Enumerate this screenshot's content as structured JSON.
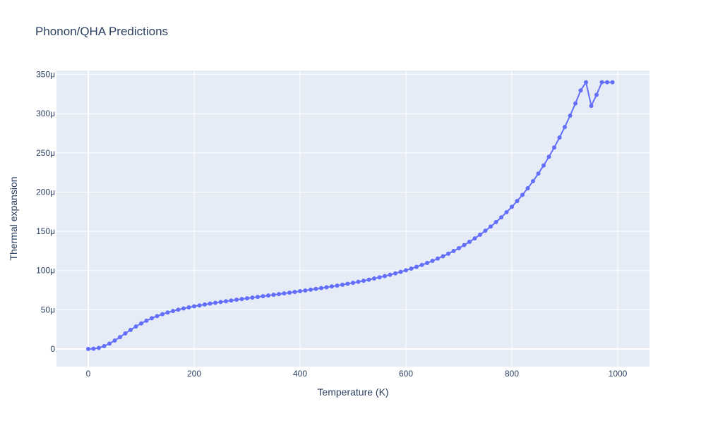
{
  "chart_data": {
    "type": "line",
    "title": "Phonon/QHA Predictions",
    "xlabel": "Temperature (K)",
    "ylabel": "Thermal expansion",
    "xlim": [
      -60,
      1060
    ],
    "ylim": [
      -2.25e-05,
      0.000355
    ],
    "grid": true,
    "x_ticks": [
      {
        "value": 0,
        "label": "0"
      },
      {
        "value": 200,
        "label": "200"
      },
      {
        "value": 400,
        "label": "400"
      },
      {
        "value": 600,
        "label": "600"
      },
      {
        "value": 800,
        "label": "800"
      },
      {
        "value": 1000,
        "label": "1000"
      }
    ],
    "y_ticks": [
      {
        "value": 0,
        "label": "0"
      },
      {
        "value": 5e-05,
        "label": "50μ"
      },
      {
        "value": 0.0001,
        "label": "100μ"
      },
      {
        "value": 0.00015,
        "label": "150μ"
      },
      {
        "value": 0.0002,
        "label": "200μ"
      },
      {
        "value": 0.00025,
        "label": "250μ"
      },
      {
        "value": 0.0003,
        "label": "300μ"
      },
      {
        "value": 0.00035,
        "label": "350μ"
      }
    ],
    "colors": {
      "plot_bg": "#e5ecf6",
      "grid": "#ffffff",
      "series": "#636efa",
      "text": "#2a3f5f"
    },
    "series": [
      {
        "x": [
          0,
          10,
          20,
          30,
          40,
          50,
          60,
          70,
          80,
          90,
          100,
          110,
          120,
          130,
          140,
          150,
          160,
          170,
          180,
          190,
          200,
          210,
          220,
          230,
          240,
          250,
          260,
          270,
          280,
          290,
          300,
          310,
          320,
          330,
          340,
          350,
          360,
          370,
          380,
          390,
          400,
          410,
          420,
          430,
          440,
          450,
          460,
          470,
          480,
          490,
          500,
          510,
          520,
          530,
          540,
          550,
          560,
          570,
          580,
          590,
          600,
          610,
          620,
          630,
          640,
          650,
          660,
          670,
          680,
          690,
          700,
          710,
          720,
          730,
          740,
          750,
          760,
          770,
          780,
          790,
          800,
          810,
          820,
          830,
          840,
          850,
          860,
          870,
          880,
          890,
          900,
          910,
          920,
          930,
          940,
          950,
          960,
          970,
          980,
          990
        ],
        "y": [
          0,
          3e-07,
          1.3e-06,
          3.6e-06,
          6.8e-06,
          1.07e-05,
          1.51e-05,
          1.99e-05,
          2.43e-05,
          2.86e-05,
          3.25e-05,
          3.6e-05,
          3.92e-05,
          4.19e-05,
          4.44e-05,
          4.65e-05,
          4.84e-05,
          5.01e-05,
          5.16e-05,
          5.3e-05,
          5.43e-05,
          5.55e-05,
          5.67e-05,
          5.78e-05,
          5.88e-05,
          5.98e-05,
          6.08e-05,
          6.18e-05,
          6.28e-05,
          6.37e-05,
          6.46e-05,
          6.55e-05,
          6.64e-05,
          6.73e-05,
          6.82e-05,
          6.91e-05,
          7e-05,
          7.09e-05,
          7.18e-05,
          7.27e-05,
          7.37e-05,
          7.46e-05,
          7.56e-05,
          7.66e-05,
          7.76e-05,
          7.86e-05,
          7.97e-05,
          8.08e-05,
          8.19e-05,
          8.31e-05,
          8.43e-05,
          8.56e-05,
          8.69e-05,
          8.83e-05,
          8.98e-05,
          9.13e-05,
          9.29e-05,
          9.46e-05,
          9.64e-05,
          9.83e-05,
          0.0001003,
          0.0001024,
          0.0001047,
          0.0001071,
          0.0001096,
          0.0001123,
          0.0001152,
          0.0001182,
          0.0001214,
          0.0001249,
          0.0001285,
          0.0001324,
          0.0001366,
          0.000141,
          0.0001457,
          0.0001507,
          0.000156,
          0.0001617,
          0.0001678,
          0.0001743,
          0.0001812,
          0.0001886,
          0.0001965,
          0.0002049,
          0.0002139,
          0.0002236,
          0.0002339,
          0.000245,
          0.0002568,
          0.0002695,
          0.000283,
          0.0002975,
          0.000313,
          0.0003296,
          0.00034,
          0.00031,
          0.000324,
          0.00034,
          0.00034,
          0.00034
        ]
      }
    ]
  }
}
